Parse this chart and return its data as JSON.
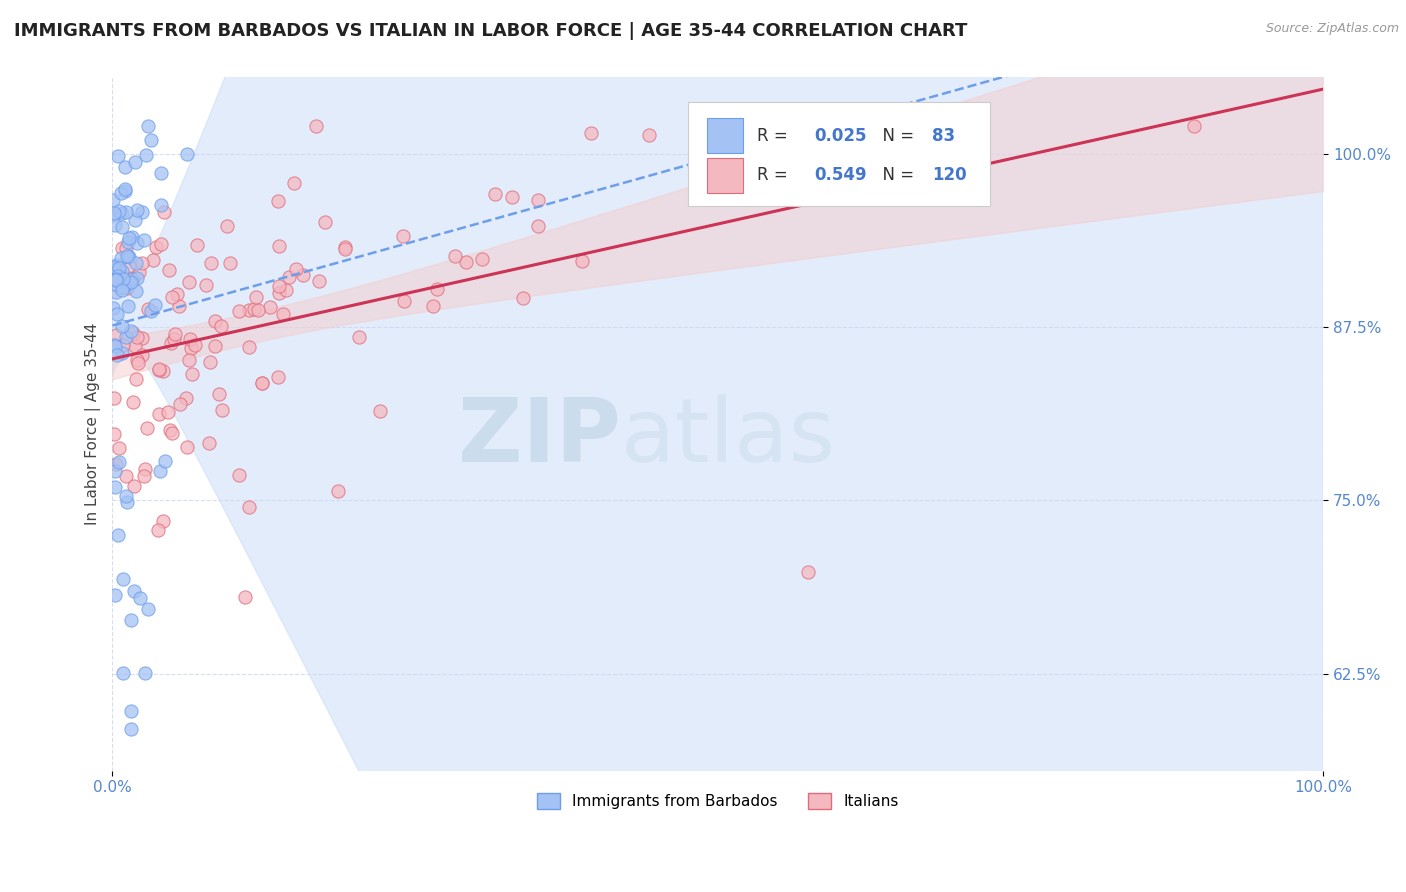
{
  "title": "IMMIGRANTS FROM BARBADOS VS ITALIAN IN LABOR FORCE | AGE 35-44 CORRELATION CHART",
  "source": "Source: ZipAtlas.com",
  "ylabel": "In Labor Force | Age 35-44",
  "barbados_R": 0.025,
  "barbados_N": 83,
  "italian_R": 0.549,
  "italian_N": 120,
  "barbados_color": "#a4c2f4",
  "barbados_edge_color": "#6d9eeb",
  "italian_color": "#f4b8c1",
  "italian_edge_color": "#e06c7a",
  "barbados_line_color": "#6d9eeb",
  "italian_line_color": "#cc3355",
  "barbados_ci_color": "#c9daf8",
  "italian_ci_color": "#f4cccc",
  "xmin": 0.0,
  "xmax": 1.0,
  "ymin": 0.555,
  "ymax": 1.055,
  "x_tick_labels": [
    "0.0%",
    "100.0%"
  ],
  "x_tick_values": [
    0.0,
    1.0
  ],
  "y_tick_labels": [
    "62.5%",
    "75.0%",
    "87.5%",
    "100.0%"
  ],
  "y_tick_values": [
    0.625,
    0.75,
    0.875,
    1.0
  ],
  "watermark_zip": "ZIP",
  "watermark_atlas": "atlas",
  "legend_labels": [
    "Immigrants from Barbados",
    "Italians"
  ],
  "title_fontsize": 13,
  "label_fontsize": 11,
  "tick_fontsize": 11
}
